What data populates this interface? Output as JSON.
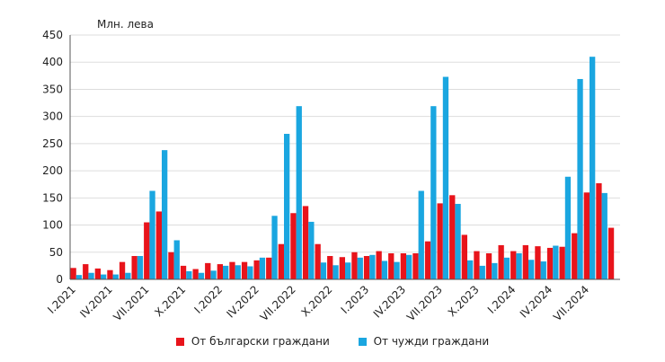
{
  "chart_data": {
    "type": "bar",
    "ylabel": "Млн. лева",
    "ylim": [
      0,
      450
    ],
    "yticks": [
      0,
      50,
      100,
      150,
      200,
      250,
      300,
      350,
      400,
      450
    ],
    "grid": "horizontal",
    "legend_position": "bottom",
    "categories": [
      "I.2021",
      "II.2021",
      "III.2021",
      "IV.2021",
      "V.2021",
      "VI.2021",
      "VII.2021",
      "VIII.2021",
      "IX.2021",
      "X.2021",
      "XI.2021",
      "XII.2021",
      "I.2022",
      "II.2022",
      "III.2022",
      "IV.2022",
      "V.2022",
      "VI.2022",
      "VII.2022",
      "VIII.2022",
      "IX.2022",
      "X.2022",
      "XI.2022",
      "XII.2022",
      "I.2023",
      "II.2023",
      "III.2023",
      "IV.2023",
      "V.2023",
      "VI.2023",
      "VII.2023",
      "VIII.2023",
      "IX.2023",
      "X.2023",
      "XI.2023",
      "XII.2023",
      "I.2024",
      "II.2024",
      "III.2024",
      "IV.2024",
      "V.2024",
      "VI.2024",
      "VII.2024",
      "VIII.2024",
      "IX.2024"
    ],
    "tick_labels": [
      "I.2021",
      "IV.2021",
      "VII.2021",
      "X.2021",
      "I.2022",
      "IV.2022",
      "VII.2022",
      "X.2022",
      "I.2023",
      "IV.2023",
      "VII.2023",
      "X.2023",
      "I.2024",
      "IV.2024",
      "VII.2024"
    ],
    "series": [
      {
        "name": "От български граждани",
        "color": "#e8141b",
        "values": [
          21,
          28,
          20,
          17,
          32,
          43,
          105,
          125,
          50,
          25,
          19,
          30,
          28,
          32,
          32,
          35,
          40,
          65,
          122,
          135,
          65,
          43,
          41,
          50,
          43,
          52,
          48,
          48,
          48,
          70,
          140,
          155,
          82,
          52,
          48,
          63,
          52,
          63,
          61,
          58,
          60,
          85,
          160,
          177,
          95
        ]
      },
      {
        "name": "От чужди граждани",
        "color": "#1aa6e0",
        "values": [
          8,
          12,
          9,
          9,
          12,
          43,
          163,
          238,
          72,
          15,
          12,
          16,
          25,
          26,
          24,
          40,
          117,
          268,
          319,
          106,
          31,
          26,
          31,
          40,
          45,
          34,
          32,
          45,
          163,
          319,
          373,
          139,
          35,
          25,
          30,
          40,
          48,
          36,
          33,
          62,
          189,
          369,
          410,
          159,
          0
        ]
      }
    ]
  }
}
